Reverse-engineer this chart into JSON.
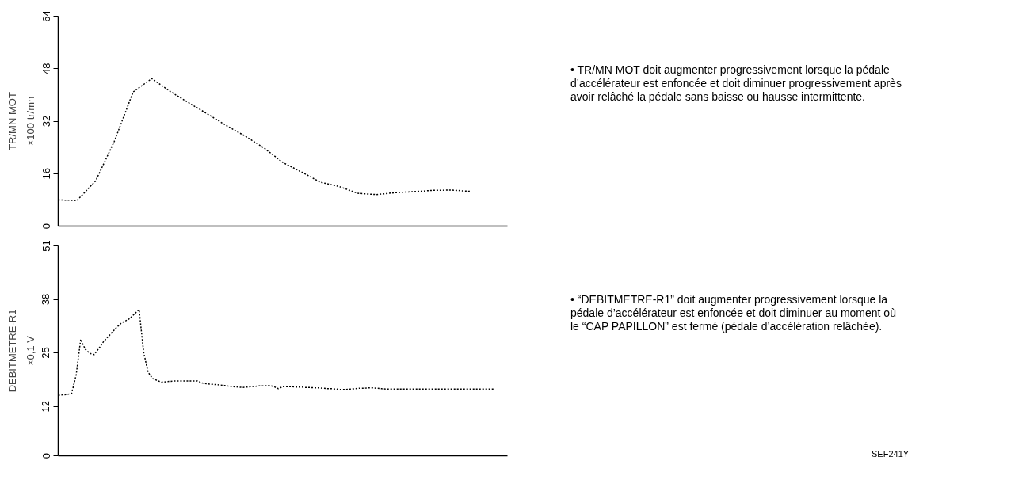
{
  "chart_data": [
    {
      "type": "line",
      "ylabel": "TR/MN MOT",
      "annotations": [
        "×100 tr/mn",
        "• TR/MN MOT doit augmenter progressivement lorsque la pédale d’accélérateur est enfoncée et doit diminuer progressivement après avoir relâché la pédale sans baisse ou hausse intermittente."
      ],
      "categories": [
        null,
        null,
        null,
        null,
        null,
        null,
        null,
        null,
        null,
        null,
        null,
        null,
        null,
        null,
        null,
        null,
        null,
        null,
        null,
        null,
        null,
        null,
        null,
        null,
        null
      ],
      "series": [
        {
          "color": "#000000",
          "values": [
            8.0,
            7.8,
            13.8,
            25.9,
            40.9,
            45.0,
            41.0,
            37.5,
            34.1,
            30.6,
            27.4,
            23.8,
            19.4,
            16.5,
            13.4,
            12.1,
            10.0,
            9.6,
            10.2,
            10.5,
            10.9,
            11.0,
            10.6,
            null,
            null
          ]
        }
      ],
      "ylim": [
        0,
        64
      ],
      "yticks": [
        0,
        16,
        32,
        48,
        64
      ],
      "grid": false,
      "tick_labels": "y",
      "marker": "none",
      "line_style": "dotted"
    },
    {
      "type": "line",
      "ylabel": "DEBITMETRE-R1",
      "annotations": [
        "×0,1 V",
        "• “DEBITMETRE-R1” doit augmenter progressivement lorsque la pédale d’accélérateur est enfoncée et doit diminuer au moment où le “CAP PAPILLON” est fermé (pédale d’accélération relâchée).",
        "SEF241Y"
      ],
      "categories": [
        null,
        null,
        null,
        null,
        null,
        null,
        null,
        null,
        null,
        null,
        null,
        null,
        null,
        null,
        null,
        null,
        null,
        null,
        null,
        null,
        null,
        null,
        null,
        null,
        null,
        null,
        null,
        null,
        null,
        null,
        null,
        null,
        null,
        null,
        null,
        null,
        null,
        null,
        null,
        null,
        null,
        null,
        null,
        null,
        null,
        null,
        null,
        null,
        null,
        null,
        null,
        null,
        null,
        null,
        null,
        null,
        null,
        null,
        null,
        null,
        null,
        null,
        null,
        null,
        null,
        null,
        null,
        null,
        null,
        null,
        null,
        null,
        null,
        null,
        null,
        null,
        null,
        null,
        null,
        null,
        null,
        null,
        null,
        null,
        null,
        null,
        null,
        null,
        null,
        null,
        null,
        null,
        null,
        null,
        null,
        null,
        null,
        null,
        null,
        null,
        null
      ],
      "series": [
        {
          "color": "#000000",
          "values": [
            14.7,
            14.8,
            14.9,
            15.2,
            19.7,
            28.3,
            25.9,
            24.9,
            24.6,
            26.0,
            27.6,
            28.8,
            30.0,
            31.2,
            32.2,
            32.8,
            33.4,
            34.5,
            35.5,
            25.2,
            20.3,
            18.8,
            18.3,
            17.9,
            18.0,
            18.1,
            18.2,
            18.2,
            18.2,
            18.2,
            18.2,
            18.2,
            17.7,
            17.5,
            17.4,
            17.3,
            17.2,
            17.1,
            16.9,
            16.8,
            16.7,
            16.6,
            16.7,
            16.8,
            16.9,
            17.0,
            17.0,
            17.1,
            16.8,
            16.3,
            16.8,
            16.8,
            16.8,
            16.7,
            16.7,
            16.6,
            16.6,
            16.5,
            16.5,
            16.4,
            16.3,
            16.3,
            16.2,
            16.1,
            16.1,
            16.2,
            16.3,
            16.4,
            16.4,
            16.5,
            16.5,
            16.4,
            16.3,
            16.2,
            16.2,
            16.2,
            16.2,
            16.2,
            16.2,
            16.2,
            16.2,
            16.2,
            16.2,
            16.2,
            16.2,
            16.2,
            16.2,
            16.2,
            16.2,
            16.2,
            16.2,
            16.2,
            16.2,
            16.2,
            16.2,
            16.2,
            16.2,
            16.2,
            null,
            null,
            null
          ]
        }
      ],
      "ylim": [
        0,
        51
      ],
      "yticks": [
        0,
        12,
        25,
        38,
        51
      ],
      "grid": false,
      "tick_labels": "y",
      "marker": "none",
      "line_style": "dotted"
    }
  ]
}
